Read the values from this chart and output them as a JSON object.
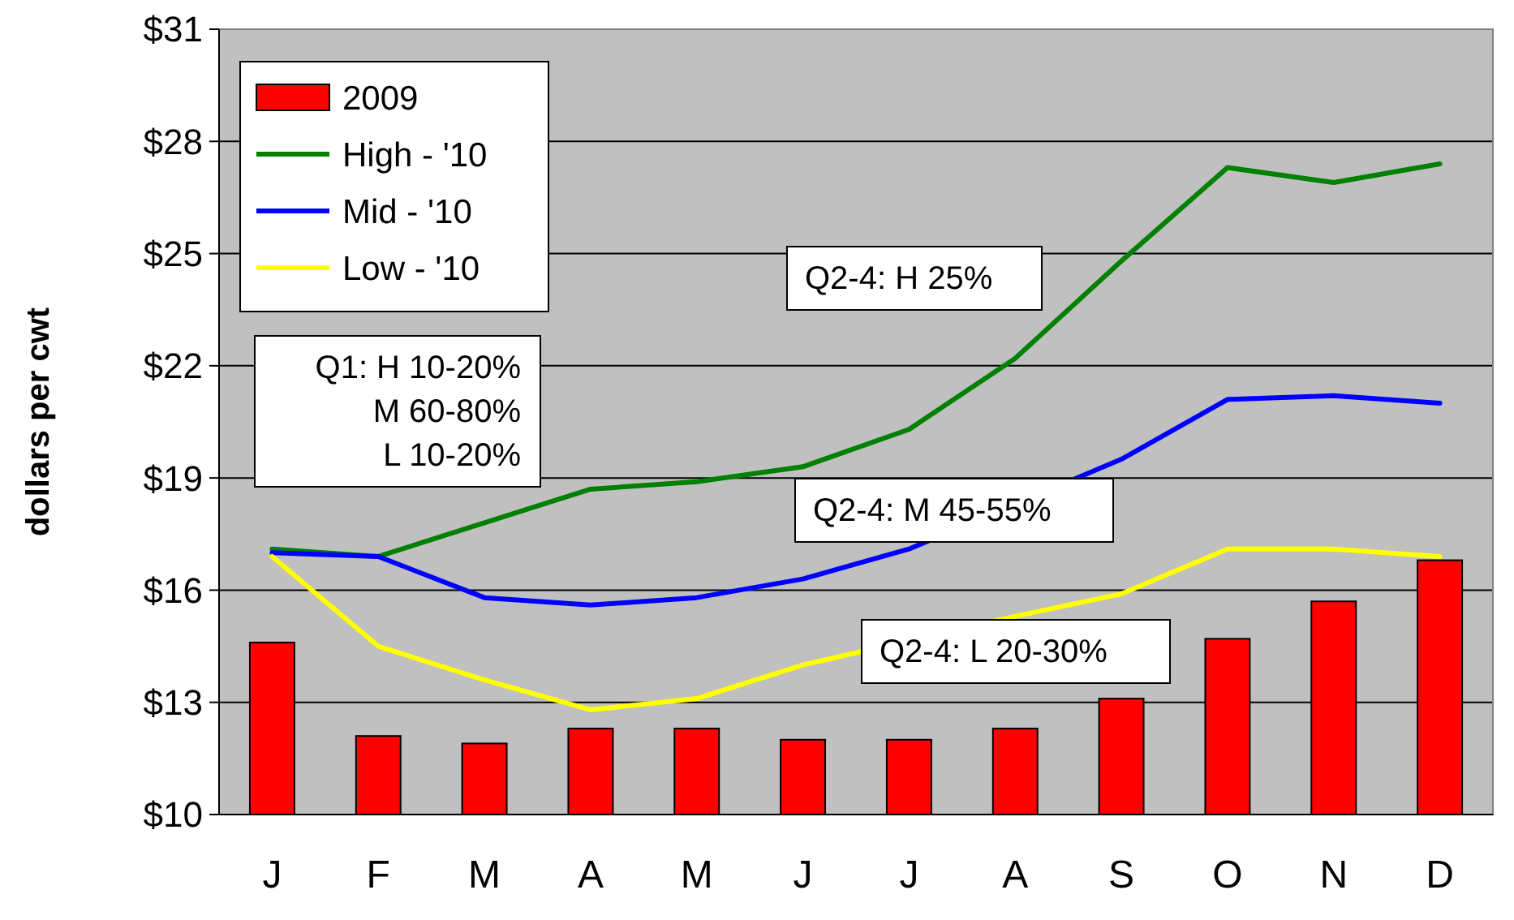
{
  "chart_data": {
    "type": "bar",
    "ylabel": "dollars per cwt",
    "categories": [
      "J",
      "F",
      "M",
      "A",
      "M",
      "J",
      "J",
      "A",
      "S",
      "O",
      "N",
      "D"
    ],
    "series": [
      {
        "name": "2009",
        "color": "#ff0000",
        "values": [
          14.6,
          12.1,
          11.9,
          12.3,
          12.3,
          12.0,
          12.0,
          12.3,
          13.1,
          14.7,
          15.7,
          16.8
        ]
      },
      {
        "name": "High - '10",
        "type": "line",
        "color": "#008000",
        "values": [
          17.1,
          16.9,
          17.8,
          18.7,
          18.9,
          19.3,
          20.3,
          22.2,
          24.8,
          27.3,
          26.9,
          27.4
        ]
      },
      {
        "name": "Mid - '10",
        "type": "line",
        "color": "#0000ff",
        "values": [
          17.0,
          16.9,
          15.8,
          15.6,
          15.8,
          16.3,
          17.1,
          null,
          19.5,
          21.1,
          21.2,
          21.0
        ]
      },
      {
        "name": "Low - '10",
        "type": "line",
        "color": "#ffff00",
        "values": [
          16.9,
          14.5,
          13.6,
          12.8,
          13.1,
          14.0,
          null,
          15.3,
          15.9,
          17.1,
          17.1,
          16.9
        ]
      }
    ],
    "ylim": [
      10,
      31
    ],
    "yticks": [
      {
        "value": 10,
        "label": "$10"
      },
      {
        "value": 13,
        "label": "$13"
      },
      {
        "value": 16,
        "label": "$16"
      },
      {
        "value": 19,
        "label": "$19"
      },
      {
        "value": 22,
        "label": "$22"
      },
      {
        "value": 25,
        "label": "$25"
      },
      {
        "value": 28,
        "label": "$28"
      },
      {
        "value": 31,
        "label": "$31"
      }
    ],
    "grid": "y",
    "legend": "top left",
    "marker": "none",
    "annotations": [
      "Q2-4: H 25%",
      "Q1: H 10-20%\nM 60-80%\nL 10-20%",
      "Q2-4: M 45-55%",
      "Q2-4: L 20-30%"
    ]
  }
}
